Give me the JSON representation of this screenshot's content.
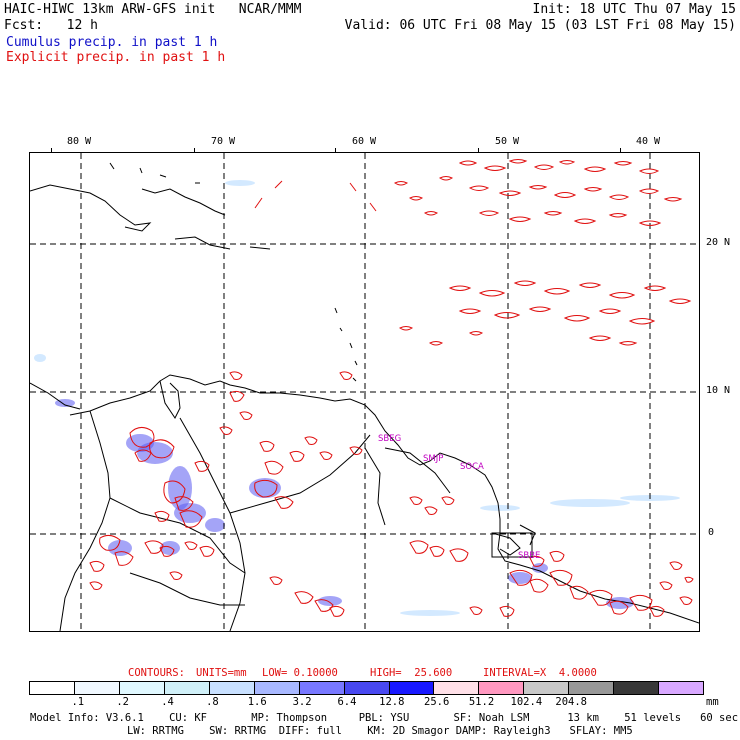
{
  "header": {
    "left_line1": "HAIC-HIWC 13km ARW-GFS init   NCAR/MMM",
    "left_line2": "Fcst:   12 h",
    "right_line1": "Init: 18 UTC Thu 07 May 15",
    "right_line2": "Valid: 06 UTC Fri 08 May 15 (03 LST Fri 08 May 15)",
    "legend_cumulus": "Cumulus precip. in past 1 h",
    "legend_explicit": "Explicit precip. in past 1 h"
  },
  "map": {
    "lon_labels": [
      "80 W",
      "70 W",
      "60 W",
      "50 W",
      "40 W"
    ],
    "lat_labels": [
      "20 N",
      "10 N",
      "0"
    ],
    "city_labels": [
      "SBEG",
      "SMJP",
      "SOCA",
      "SBBE"
    ],
    "colors": {
      "land": "#000000",
      "grid": "#000000",
      "explicit_contour": "#e01010",
      "cumulus": "#4a4af0"
    }
  },
  "contours": {
    "label": "CONTOURS:",
    "units": "UNITS=mm",
    "low": "LOW= 0.10000",
    "high": "HIGH=  25.600",
    "interval": "INTERVAL=X  4.0000"
  },
  "colorbar": {
    "colors": [
      "#ffffff",
      "#f0f8ff",
      "#e0f8ff",
      "#d0f0f8",
      "#c8e0ff",
      "#a8b8ff",
      "#7878ff",
      "#4848f0",
      "#1818ff",
      "#ffe0e8",
      "#ff98c0",
      "#c8c8c8",
      "#989898",
      "#383838",
      "#d8a8ff"
    ],
    "labels": [
      ".1",
      ".2",
      ".4",
      ".8",
      "1.6",
      "3.2",
      "6.4",
      "12.8",
      "25.6",
      "51.2",
      "102.4",
      "204.8"
    ],
    "unit": "mm"
  },
  "footer": {
    "line1": "Model Info: V3.6.1    CU: KF       MP: Thompson     PBL: YSU       SF: Noah LSM      13 km    51 levels   60 sec",
    "line2": "LW: RRTMG    SW: RRTMG  DIFF: full    KM: 2D Smagor DAMP: Rayleigh3   SFLAY: MM5"
  }
}
